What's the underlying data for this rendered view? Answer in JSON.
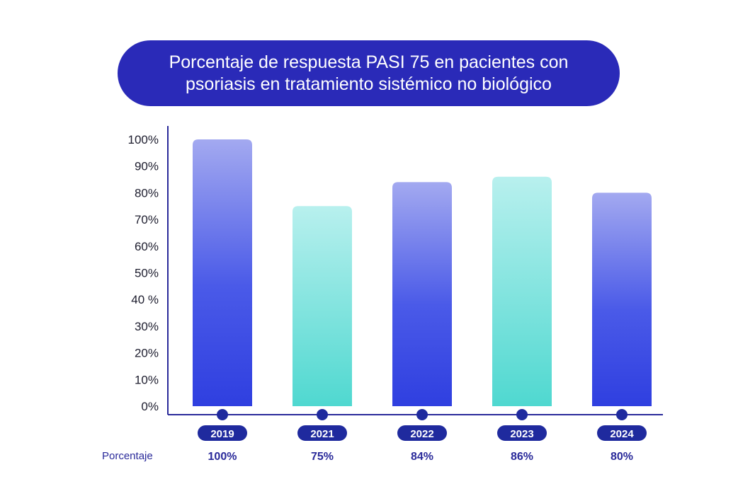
{
  "title": {
    "line1": "Porcentaje de respuesta PASI 75 en pacientes con",
    "line2": "psoriasis en tratamiento sistémico no biológico"
  },
  "colors": {
    "title_bg": "#2a2ab8",
    "axis": "#2a2a9a",
    "blue_top": "#a3a9f0",
    "blue_bottom": "#2f3fe0",
    "teal_top": "#b8f0ee",
    "teal_bottom": "#4fd8d0",
    "year_pill": "#1f2a9e"
  },
  "chart_data": {
    "type": "bar",
    "categories": [
      "2019",
      "2021",
      "2022",
      "2023",
      "2024"
    ],
    "values": [
      100,
      75,
      84,
      86,
      80
    ],
    "bar_styles": [
      "blue",
      "teal",
      "blue",
      "teal",
      "blue"
    ],
    "ylim": [
      0,
      100
    ],
    "yticks": [
      "0%",
      "10%",
      "20%",
      "30%",
      "40 %",
      "50%",
      "60%",
      "70%",
      "80%",
      "90%",
      "100%"
    ],
    "row_label": "Porcentaje",
    "value_labels": [
      "100%",
      "75%",
      "84%",
      "86%",
      "80%"
    ],
    "grid": false,
    "title": "Porcentaje de respuesta PASI 75 en pacientes con psoriasis en tratamiento sistémico no biológico"
  }
}
